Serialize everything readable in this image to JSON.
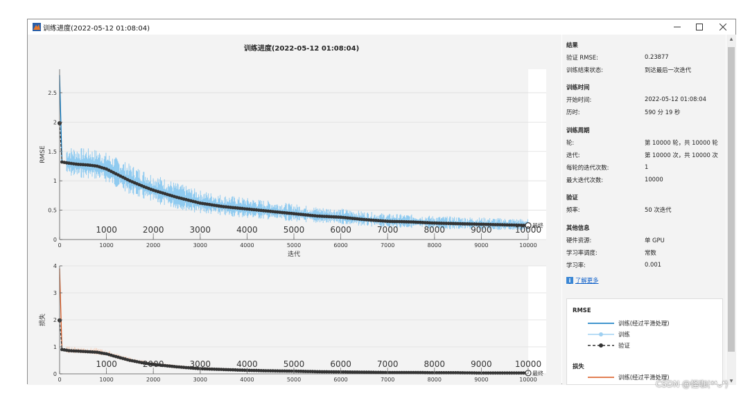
{
  "window": {
    "title": "训练进度(2022-05-12 01:08:04)"
  },
  "plot": {
    "title": "训练进度(2022-05-12 01:08:04)",
    "rmse_ylabel": "RMSE",
    "loss_ylabel": "损失",
    "xlabel": "迭代",
    "final_label": "最终"
  },
  "chart_data": [
    {
      "type": "line",
      "title": "训练进度(2022-05-12 01:08:04)",
      "xlabel": "迭代",
      "ylabel": "RMSE",
      "xlim": [
        0,
        10000
      ],
      "ylim": [
        0,
        2.9
      ],
      "xticks": [
        0,
        1000,
        2000,
        3000,
        4000,
        5000,
        6000,
        7000,
        8000,
        9000,
        10000
      ],
      "yticks": [
        0,
        0.5,
        1,
        1.5,
        2,
        2.5
      ],
      "epoch_ticks": [
        1000,
        2000,
        3000,
        4000,
        5000,
        6000,
        7000,
        8000,
        9000,
        10000
      ],
      "grid": true,
      "x": [
        0,
        50,
        200,
        400,
        600,
        800,
        1000,
        1200,
        1500,
        1800,
        2000,
        2500,
        3000,
        3500,
        4000,
        4500,
        5000,
        5500,
        6000,
        6500,
        7000,
        7500,
        8000,
        8500,
        9000,
        9500,
        10000
      ],
      "series": [
        {
          "name": "训练(经过平滑处理)",
          "values": [
            2.8,
            1.32,
            1.3,
            1.28,
            1.27,
            1.25,
            1.2,
            1.12,
            1.0,
            0.9,
            0.84,
            0.72,
            0.62,
            0.56,
            0.52,
            0.48,
            0.44,
            0.4,
            0.38,
            0.34,
            0.31,
            0.3,
            0.28,
            0.27,
            0.26,
            0.25,
            0.24
          ]
        },
        {
          "name": "验证",
          "values": [
            1.98,
            1.32,
            1.3,
            1.28,
            1.27,
            1.25,
            1.2,
            1.12,
            1.0,
            0.9,
            0.84,
            0.72,
            0.62,
            0.56,
            0.52,
            0.48,
            0.44,
            0.4,
            0.38,
            0.34,
            0.31,
            0.3,
            0.28,
            0.27,
            0.26,
            0.25,
            0.24
          ]
        }
      ]
    },
    {
      "type": "line",
      "xlabel": "迭代",
      "ylabel": "损失",
      "xlim": [
        0,
        10000
      ],
      "ylim": [
        0,
        4
      ],
      "xticks": [
        0,
        1000,
        2000,
        3000,
        4000,
        5000,
        6000,
        7000,
        8000,
        9000,
        10000
      ],
      "yticks": [
        0,
        1,
        2,
        3,
        4
      ],
      "epoch_ticks": [
        1000,
        2000,
        3000,
        4000,
        5000,
        6000,
        7000,
        8000,
        9000,
        10000
      ],
      "grid": true,
      "x": [
        0,
        50,
        200,
        400,
        600,
        800,
        1000,
        1200,
        1500,
        1800,
        2000,
        2500,
        3000,
        3500,
        4000,
        4500,
        5000,
        5500,
        6000,
        6500,
        7000,
        7500,
        8000,
        8500,
        9000,
        9500,
        10000
      ],
      "series": [
        {
          "name": "训练(经过平滑处理)",
          "values": [
            3.9,
            0.9,
            0.86,
            0.84,
            0.82,
            0.8,
            0.74,
            0.64,
            0.5,
            0.4,
            0.35,
            0.26,
            0.19,
            0.16,
            0.13,
            0.11,
            0.1,
            0.08,
            0.07,
            0.06,
            0.05,
            0.05,
            0.04,
            0.04,
            0.03,
            0.03,
            0.03
          ]
        },
        {
          "name": "验证",
          "values": [
            1.98,
            0.9,
            0.86,
            0.84,
            0.82,
            0.8,
            0.74,
            0.64,
            0.5,
            0.4,
            0.35,
            0.26,
            0.19,
            0.16,
            0.13,
            0.11,
            0.1,
            0.08,
            0.07,
            0.06,
            0.05,
            0.05,
            0.04,
            0.04,
            0.03,
            0.03,
            0.03
          ]
        }
      ]
    }
  ],
  "info": {
    "results": {
      "title": "结果",
      "rows": [
        {
          "label": "验证 RMSE:",
          "value": "0.23877"
        },
        {
          "label": "训练结束状态:",
          "value": "到达最后一次迭代"
        }
      ]
    },
    "time": {
      "title": "训练时间",
      "rows": [
        {
          "label": "开始时间:",
          "value": "2022-05-12 01:08:04"
        },
        {
          "label": "历时:",
          "value": "590 分 19 秒"
        }
      ]
    },
    "cycle": {
      "title": "训练周期",
      "rows": [
        {
          "label": "轮:",
          "value": "第 10000 轮，共 10000 轮"
        },
        {
          "label": "迭代:",
          "value": "第 10000 次，共 10000 次"
        },
        {
          "label": "每轮的迭代次数:",
          "value": "1"
        },
        {
          "label": "最大迭代次数:",
          "value": "10000"
        }
      ]
    },
    "validation": {
      "title": "验证",
      "rows": [
        {
          "label": "频率:",
          "value": "50 次迭代"
        }
      ]
    },
    "other": {
      "title": "其他信息",
      "rows": [
        {
          "label": "硬件资源:",
          "value": "单 GPU"
        },
        {
          "label": "学习率调度:",
          "value": "常数"
        },
        {
          "label": "学习率:",
          "value": "0.001"
        }
      ]
    },
    "learn_more": "了解更多"
  },
  "legend": {
    "rmse_title": "RMSE",
    "rmse_items": [
      "训练(经过平滑处理)",
      "训练",
      "验证"
    ],
    "loss_title": "损失",
    "loss_items": [
      "训练(经过平滑处理)"
    ]
  },
  "colors": {
    "smoothed_blue": "#0072BD",
    "raw_blue": "#7ec3ee",
    "smoothed_orange": "#D95319",
    "validation": "#333333",
    "plot_bg": "#f3f3f3"
  },
  "watermark": "CSDN @怪咖(*❛ᴗ❛)"
}
